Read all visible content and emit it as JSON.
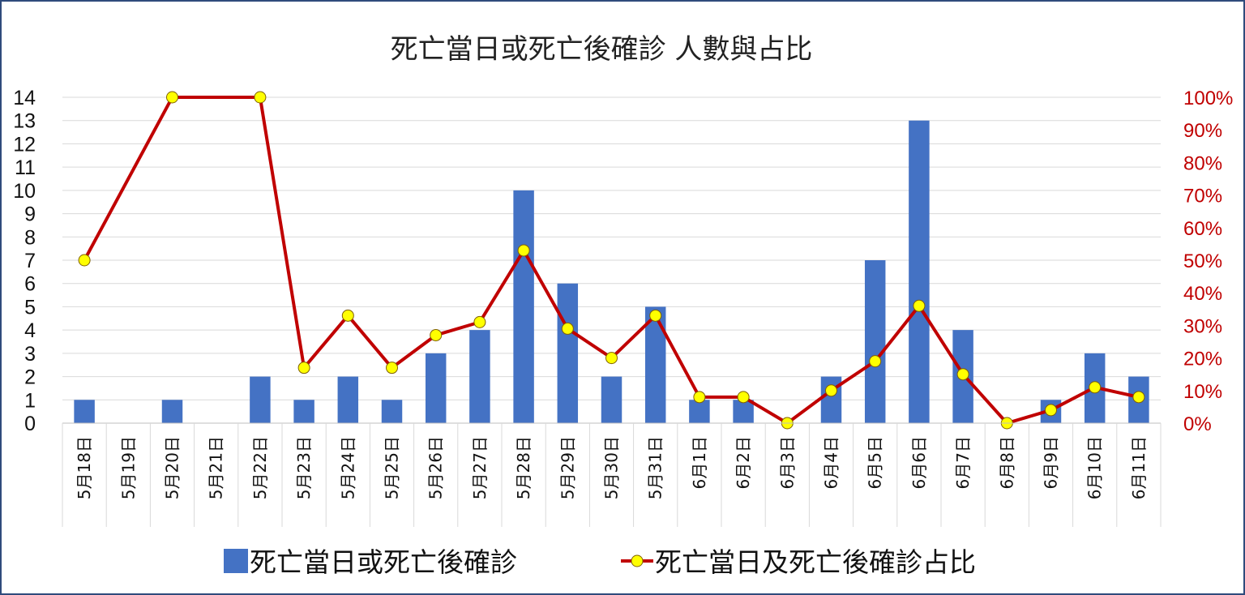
{
  "chart_data": {
    "type": "bar+line",
    "title": "死亡當日或死亡後確診  人數與占比",
    "categories": [
      "5月18日",
      "5月19日",
      "5月20日",
      "5月21日",
      "5月22日",
      "5月23日",
      "5月24日",
      "5月25日",
      "5月26日",
      "5月27日",
      "5月28日",
      "5月29日",
      "5月30日",
      "5月31日",
      "6月1日",
      "6月2日",
      "6月3日",
      "6月4日",
      "6月5日",
      "6月6日",
      "6月7日",
      "6月8日",
      "6月9日",
      "6月10日",
      "6月11日"
    ],
    "series": [
      {
        "name": "死亡當日或死亡後確診",
        "type": "bar",
        "axis": "left",
        "color": "#4472c4",
        "values": [
          1,
          0,
          1,
          0,
          2,
          1,
          2,
          1,
          3,
          4,
          10,
          6,
          2,
          5,
          1,
          1,
          0,
          2,
          7,
          13,
          4,
          0,
          1,
          3,
          2
        ]
      },
      {
        "name": "死亡當日及死亡後確診占比",
        "type": "line",
        "axis": "right",
        "color": "#c00000",
        "marker_color": "#ffff00",
        "values": [
          50,
          null,
          100,
          null,
          100,
          17,
          33,
          17,
          27,
          31,
          53,
          29,
          20,
          33,
          8,
          8,
          0,
          10,
          19,
          36,
          15,
          0,
          4,
          11,
          8
        ]
      }
    ],
    "y_left": {
      "min": 0,
      "max": 14,
      "step": 1,
      "ticks": [
        "0",
        "1",
        "2",
        "3",
        "4",
        "5",
        "6",
        "7",
        "8",
        "9",
        "10",
        "11",
        "12",
        "13",
        "14"
      ]
    },
    "y_right": {
      "min": 0,
      "max": 100,
      "step": 10,
      "ticks": [
        "0%",
        "10%",
        "20%",
        "30%",
        "40%",
        "50%",
        "60%",
        "70%",
        "80%",
        "90%",
        "100%"
      ]
    },
    "grid": true,
    "legend": "bottom",
    "frame_color": "#2f4b7c",
    "grid_color": "#d9d9d9"
  }
}
